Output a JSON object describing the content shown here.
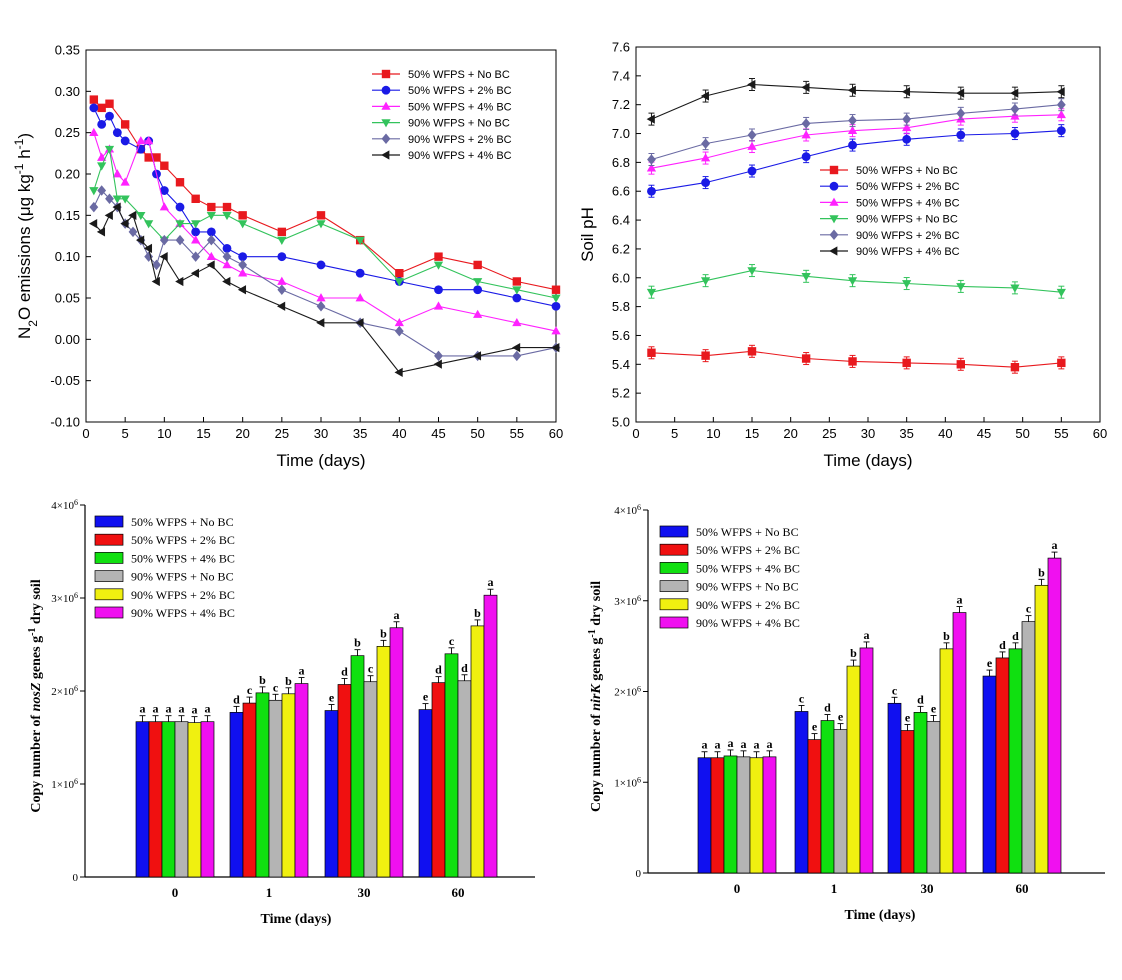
{
  "chart_data": [
    {
      "id": "n2o",
      "type": "line",
      "xlabel": "Time (days)",
      "ylabel_parts": [
        "N",
        "2",
        "O emissions (μg kg",
        "-1",
        " h",
        "-1",
        ")"
      ],
      "xlim": [
        0,
        60
      ],
      "ylim": [
        -0.1,
        0.35
      ],
      "xticks": [
        "0",
        "5",
        "10",
        "15",
        "20",
        "25",
        "30",
        "35",
        "40",
        "45",
        "50",
        "55",
        "60"
      ],
      "yticks": [
        "-0.10",
        "-0.05",
        "0.00",
        "0.05",
        "0.10",
        "0.15",
        "0.20",
        "0.25",
        "0.30",
        "0.35"
      ],
      "legend_position": "top-right",
      "series": [
        {
          "name": "50% WFPS + No BC",
          "color": "#e8191e",
          "marker": "square",
          "x": [
            1,
            2,
            3,
            5,
            7,
            8,
            9,
            10,
            12,
            14,
            16,
            18,
            20,
            25,
            30,
            35,
            40,
            45,
            50,
            55,
            60
          ],
          "y": [
            0.29,
            0.28,
            0.285,
            0.26,
            0.23,
            0.22,
            0.22,
            0.21,
            0.19,
            0.17,
            0.16,
            0.16,
            0.15,
            0.13,
            0.15,
            0.12,
            0.08,
            0.1,
            0.09,
            0.07,
            0.06
          ]
        },
        {
          "name": "50% WFPS + 2% BC",
          "color": "#1a1ae6",
          "marker": "circle",
          "x": [
            1,
            2,
            3,
            4,
            5,
            7,
            8,
            9,
            10,
            12,
            14,
            16,
            18,
            20,
            25,
            30,
            35,
            40,
            45,
            50,
            55,
            60
          ],
          "y": [
            0.28,
            0.26,
            0.27,
            0.25,
            0.24,
            0.23,
            0.24,
            0.2,
            0.18,
            0.16,
            0.13,
            0.13,
            0.11,
            0.1,
            0.1,
            0.09,
            0.08,
            0.07,
            0.06,
            0.06,
            0.05,
            0.04
          ]
        },
        {
          "name": "50% WFPS + 4% BC",
          "color": "#ff22ff",
          "marker": "triangle-up",
          "x": [
            1,
            2,
            3,
            4,
            5,
            7,
            8,
            10,
            12,
            14,
            16,
            18,
            20,
            25,
            30,
            35,
            40,
            45,
            50,
            55,
            60
          ],
          "y": [
            0.25,
            0.22,
            0.23,
            0.2,
            0.19,
            0.24,
            0.24,
            0.16,
            0.14,
            0.12,
            0.1,
            0.09,
            0.08,
            0.07,
            0.05,
            0.05,
            0.02,
            0.04,
            0.03,
            0.02,
            0.01
          ]
        },
        {
          "name": "90% WFPS + No BC",
          "color": "#33c35c",
          "marker": "triangle-down",
          "x": [
            1,
            2,
            3,
            4,
            5,
            7,
            8,
            10,
            12,
            14,
            16,
            18,
            20,
            25,
            30,
            35,
            40,
            45,
            50,
            55,
            60
          ],
          "y": [
            0.18,
            0.21,
            0.23,
            0.17,
            0.17,
            0.15,
            0.14,
            0.12,
            0.14,
            0.14,
            0.15,
            0.15,
            0.14,
            0.12,
            0.14,
            0.12,
            0.07,
            0.09,
            0.07,
            0.06,
            0.05
          ]
        },
        {
          "name": "90% WFPS + 2% BC",
          "color": "#6a6aa3",
          "marker": "diamond",
          "x": [
            1,
            2,
            3,
            4,
            5,
            6,
            7,
            8,
            9,
            10,
            12,
            14,
            16,
            18,
            20,
            25,
            30,
            35,
            40,
            45,
            50,
            55,
            60
          ],
          "y": [
            0.16,
            0.18,
            0.17,
            0.16,
            0.14,
            0.13,
            0.12,
            0.1,
            0.09,
            0.12,
            0.12,
            0.1,
            0.12,
            0.1,
            0.09,
            0.06,
            0.04,
            0.02,
            0.01,
            -0.02,
            -0.02,
            -0.02,
            -0.01
          ]
        },
        {
          "name": "90% WFPS + 4% BC",
          "color": "#1a1a1a",
          "marker": "triangle-left",
          "x": [
            1,
            2,
            3,
            4,
            5,
            6,
            7,
            8,
            9,
            10,
            12,
            14,
            16,
            18,
            20,
            25,
            30,
            35,
            40,
            45,
            50,
            55,
            60
          ],
          "y": [
            0.14,
            0.13,
            0.15,
            0.16,
            0.14,
            0.15,
            0.12,
            0.11,
            0.07,
            0.1,
            0.07,
            0.08,
            0.09,
            0.07,
            0.06,
            0.04,
            0.02,
            0.02,
            -0.04,
            -0.03,
            -0.02,
            -0.01,
            -0.01
          ]
        }
      ]
    },
    {
      "id": "ph",
      "type": "line",
      "xlabel": "Time (days)",
      "ylabel": "Soil pH",
      "xlim": [
        0,
        60
      ],
      "ylim": [
        5.0,
        7.6
      ],
      "xticks": [
        "0",
        "5",
        "10",
        "15",
        "20",
        "25",
        "30",
        "35",
        "40",
        "45",
        "50",
        "55",
        "60"
      ],
      "yticks": [
        "5.0",
        "5.2",
        "5.4",
        "5.6",
        "5.8",
        "6.0",
        "6.2",
        "6.4",
        "6.6",
        "6.8",
        "7.0",
        "7.2",
        "7.4",
        "7.6"
      ],
      "legend_position": "center-right",
      "series": [
        {
          "name": "50% WFPS + No BC",
          "color": "#e8191e",
          "marker": "square",
          "x": [
            2,
            9,
            15,
            22,
            28,
            35,
            42,
            49,
            55
          ],
          "y": [
            5.48,
            5.46,
            5.49,
            5.44,
            5.42,
            5.41,
            5.4,
            5.38,
            5.41
          ]
        },
        {
          "name": "50% WFPS + 2% BC",
          "color": "#1a1ae6",
          "marker": "circle",
          "x": [
            2,
            9,
            15,
            22,
            28,
            35,
            42,
            49,
            55
          ],
          "y": [
            6.6,
            6.66,
            6.74,
            6.84,
            6.92,
            6.96,
            6.99,
            7.0,
            7.02
          ]
        },
        {
          "name": "50% WFPS + 4% BC",
          "color": "#ff22ff",
          "marker": "triangle-up",
          "x": [
            2,
            9,
            15,
            22,
            28,
            35,
            42,
            49,
            55
          ],
          "y": [
            6.76,
            6.83,
            6.91,
            6.99,
            7.02,
            7.04,
            7.1,
            7.12,
            7.13
          ]
        },
        {
          "name": "90% WFPS + No BC",
          "color": "#33c35c",
          "marker": "triangle-down",
          "x": [
            2,
            9,
            15,
            22,
            28,
            35,
            42,
            49,
            55
          ],
          "y": [
            5.9,
            5.98,
            6.05,
            6.01,
            5.98,
            5.96,
            5.94,
            5.93,
            5.9
          ]
        },
        {
          "name": "90% WFPS + 2% BC",
          "color": "#6a6aa3",
          "marker": "diamond",
          "x": [
            2,
            9,
            15,
            22,
            28,
            35,
            42,
            49,
            55
          ],
          "y": [
            6.82,
            6.93,
            6.99,
            7.07,
            7.09,
            7.1,
            7.14,
            7.17,
            7.2
          ]
        },
        {
          "name": "90% WFPS + 4% BC",
          "color": "#1a1a1a",
          "marker": "triangle-left",
          "x": [
            2,
            9,
            15,
            22,
            28,
            35,
            42,
            49,
            55
          ],
          "y": [
            7.1,
            7.26,
            7.34,
            7.32,
            7.3,
            7.29,
            7.28,
            7.28,
            7.29
          ]
        }
      ]
    },
    {
      "id": "nosz",
      "type": "bar",
      "ylabel_parts": [
        "Copy number of ",
        "nosZ",
        " genes g",
        "-1",
        " dry soil"
      ],
      "xlabel": "Time (days)",
      "categories": [
        "0",
        "1",
        "30",
        "60"
      ],
      "ylim": [
        0,
        4000000
      ],
      "yticks": [
        {
          "value": 0,
          "label": "0",
          "sup": ""
        },
        {
          "value": 1000000,
          "label": "1×10",
          "sup": "6"
        },
        {
          "value": 2000000,
          "label": "2×10",
          "sup": "6"
        },
        {
          "value": 3000000,
          "label": "3×10",
          "sup": "6"
        },
        {
          "value": 4000000,
          "label": "4×10",
          "sup": "6"
        }
      ],
      "legend_position": "top-left",
      "series": [
        {
          "name": "50% WFPS + No BC",
          "color": "#1010f0",
          "values": [
            1670000,
            1770000,
            1790000,
            1800000
          ],
          "letters": [
            "a",
            "d",
            "e",
            "e"
          ]
        },
        {
          "name": "50% WFPS + 2% BC",
          "color": "#f01010",
          "values": [
            1670000,
            1870000,
            2070000,
            2090000
          ],
          "letters": [
            "a",
            "c",
            "d",
            "d"
          ]
        },
        {
          "name": "50% WFPS + 4% BC",
          "color": "#10e010",
          "values": [
            1670000,
            1980000,
            2380000,
            2400000
          ],
          "letters": [
            "a",
            "b",
            "b",
            "c"
          ]
        },
        {
          "name": "90% WFPS + No BC",
          "color": "#b4b4b4",
          "values": [
            1670000,
            1900000,
            2100000,
            2110000
          ],
          "letters": [
            "a",
            "c",
            "c",
            "d"
          ]
        },
        {
          "name": "90% WFPS + 2% BC",
          "color": "#f0f010",
          "values": [
            1660000,
            1970000,
            2480000,
            2700000
          ],
          "letters": [
            "a",
            "b",
            "b",
            "b"
          ]
        },
        {
          "name": "90% WFPS + 4% BC",
          "color": "#f010f0",
          "values": [
            1670000,
            2080000,
            2680000,
            3030000
          ],
          "letters": [
            "a",
            "a",
            "a",
            "a"
          ]
        }
      ]
    },
    {
      "id": "nirk",
      "type": "bar",
      "ylabel_parts": [
        "Copy number of ",
        "nirK",
        " genes g",
        "-1",
        " dry soil"
      ],
      "xlabel": "Time (days)",
      "categories": [
        "0",
        "1",
        "30",
        "60"
      ],
      "ylim": [
        0,
        4000000
      ],
      "yticks": [
        {
          "value": 0,
          "label": "0",
          "sup": ""
        },
        {
          "value": 1000000,
          "label": "1×10",
          "sup": "6"
        },
        {
          "value": 2000000,
          "label": "2×10",
          "sup": "6"
        },
        {
          "value": 3000000,
          "label": "3×10",
          "sup": "6"
        },
        {
          "value": 4000000,
          "label": "4×10",
          "sup": "6"
        }
      ],
      "legend_position": "top-left",
      "series": [
        {
          "name": "50% WFPS + No BC",
          "color": "#1010f0",
          "values": [
            1270000,
            1780000,
            1870000,
            2170000
          ],
          "letters": [
            "a",
            "c",
            "c",
            "e"
          ]
        },
        {
          "name": "50% WFPS + 2% BC",
          "color": "#f01010",
          "values": [
            1270000,
            1470000,
            1570000,
            2370000
          ],
          "letters": [
            "a",
            "e",
            "e",
            "d"
          ]
        },
        {
          "name": "50% WFPS + 4% BC",
          "color": "#10e010",
          "values": [
            1290000,
            1680000,
            1770000,
            2470000
          ],
          "letters": [
            "a",
            "d",
            "d",
            "d"
          ]
        },
        {
          "name": "90% WFPS + No BC",
          "color": "#b4b4b4",
          "values": [
            1280000,
            1580000,
            1670000,
            2770000
          ],
          "letters": [
            "a",
            "e",
            "e",
            "c"
          ]
        },
        {
          "name": "90% WFPS + 2% BC",
          "color": "#f0f010",
          "values": [
            1270000,
            2280000,
            2470000,
            3170000
          ],
          "letters": [
            "a",
            "b",
            "b",
            "b"
          ]
        },
        {
          "name": "90% WFPS + 4% BC",
          "color": "#f010f0",
          "values": [
            1280000,
            2480000,
            2870000,
            3470000
          ],
          "letters": [
            "a",
            "a",
            "a",
            "a"
          ]
        }
      ]
    }
  ]
}
